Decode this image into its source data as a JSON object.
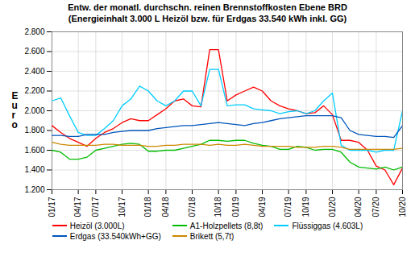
{
  "chart_data": {
    "type": "line",
    "title": "Entw. der monatl. durchschn. reinen Brennstoffkosten Ebene BRD",
    "subtitle": "(Energieinhalt 3.000 L Heizöl bzw. für Erdgas 33.540 kWh inkl. GG)",
    "ylabel": "E\nu\nr\no",
    "categories": [
      "01/17",
      null,
      null,
      "04/17",
      null,
      "07/17",
      null,
      null,
      "10/17",
      null,
      null,
      "01/18",
      null,
      "04/18",
      null,
      null,
      "07/18",
      null,
      null,
      "10/18",
      null,
      "01/19",
      null,
      null,
      "04/19",
      null,
      null,
      "07/19",
      null,
      "10/19",
      null,
      null,
      "01/20",
      null,
      null,
      "04/20",
      null,
      "07/20",
      null,
      null,
      "10/20"
    ],
    "series": [
      {
        "name": "Heizöl (3.000L)",
        "color": "#FF0000",
        "values": [
          1.85,
          1.78,
          1.72,
          1.68,
          1.64,
          1.72,
          1.78,
          1.82,
          1.88,
          1.92,
          1.9,
          1.9,
          1.96,
          2.02,
          2.1,
          2.12,
          2.05,
          2.04,
          2.62,
          2.62,
          2.1,
          2.16,
          2.2,
          2.24,
          2.2,
          2.1,
          2.05,
          2.02,
          2.0,
          1.97,
          1.98,
          2.05,
          1.96,
          1.7,
          1.7,
          1.68,
          1.6,
          1.44,
          1.4,
          1.25,
          1.42
        ]
      },
      {
        "name": "A1-Holzpellets (8,8t)",
        "color": "#00BB00",
        "values": [
          1.6,
          1.58,
          1.51,
          1.51,
          1.53,
          1.6,
          1.62,
          1.64,
          1.66,
          1.67,
          1.66,
          1.59,
          1.59,
          1.6,
          1.6,
          1.62,
          1.64,
          1.66,
          1.7,
          1.7,
          1.69,
          1.7,
          1.7,
          1.67,
          1.65,
          1.64,
          1.61,
          1.61,
          1.64,
          1.63,
          1.6,
          1.61,
          1.61,
          1.58,
          1.48,
          1.43,
          1.42,
          1.41,
          1.43,
          1.4,
          1.43
        ]
      },
      {
        "name": "Flüssiggas (4.603L)",
        "color": "#00CCFF",
        "values": [
          2.1,
          2.13,
          1.95,
          1.78,
          1.75,
          1.75,
          1.82,
          1.9,
          2.05,
          2.12,
          2.25,
          2.2,
          2.1,
          2.05,
          2.1,
          2.2,
          2.2,
          2.05,
          2.42,
          2.42,
          2.05,
          2.06,
          2.06,
          2.02,
          2.01,
          2.0,
          1.97,
          1.99,
          2.0,
          1.97,
          2.0,
          2.1,
          2.18,
          1.65,
          1.6,
          1.6,
          1.6,
          1.58,
          1.6,
          1.6,
          2.0
        ]
      },
      {
        "name": "Erdgas (33.540kWh+GG)",
        "color": "#0055BB",
        "values": [
          1.75,
          1.75,
          1.74,
          1.74,
          1.76,
          1.76,
          1.76,
          1.78,
          1.79,
          1.8,
          1.8,
          1.8,
          1.82,
          1.83,
          1.84,
          1.85,
          1.85,
          1.86,
          1.87,
          1.88,
          1.87,
          1.86,
          1.85,
          1.87,
          1.88,
          1.9,
          1.92,
          1.93,
          1.94,
          1.95,
          1.95,
          1.95,
          1.95,
          1.93,
          1.8,
          1.76,
          1.75,
          1.74,
          1.74,
          1.73,
          1.85
        ]
      },
      {
        "name": "Brikett (5,7t)",
        "color": "#CC8800",
        "values": [
          1.68,
          1.66,
          1.65,
          1.65,
          1.65,
          1.65,
          1.66,
          1.66,
          1.65,
          1.65,
          1.65,
          1.64,
          1.64,
          1.65,
          1.65,
          1.66,
          1.66,
          1.66,
          1.65,
          1.66,
          1.65,
          1.65,
          1.66,
          1.65,
          1.64,
          1.64,
          1.64,
          1.64,
          1.63,
          1.63,
          1.63,
          1.64,
          1.64,
          1.63,
          1.61,
          1.61,
          1.61,
          1.61,
          1.61,
          1.61,
          1.62
        ]
      }
    ],
    "ylim": [
      1.2,
      2.8
    ],
    "yticks": [
      {
        "value": 1.2,
        "label": "1.200"
      },
      {
        "value": 1.4,
        "label": "1.400"
      },
      {
        "value": 1.6,
        "label": "1.600"
      },
      {
        "value": 1.8,
        "label": "1.800"
      },
      {
        "value": 2.0,
        "label": "2.000"
      },
      {
        "value": 2.2,
        "label": "2.200"
      },
      {
        "value": 2.4,
        "label": "2.400"
      },
      {
        "value": 2.6,
        "label": "2.600"
      },
      {
        "value": 2.8,
        "label": "2.800"
      }
    ],
    "grid": true,
    "legend": "bottom"
  }
}
